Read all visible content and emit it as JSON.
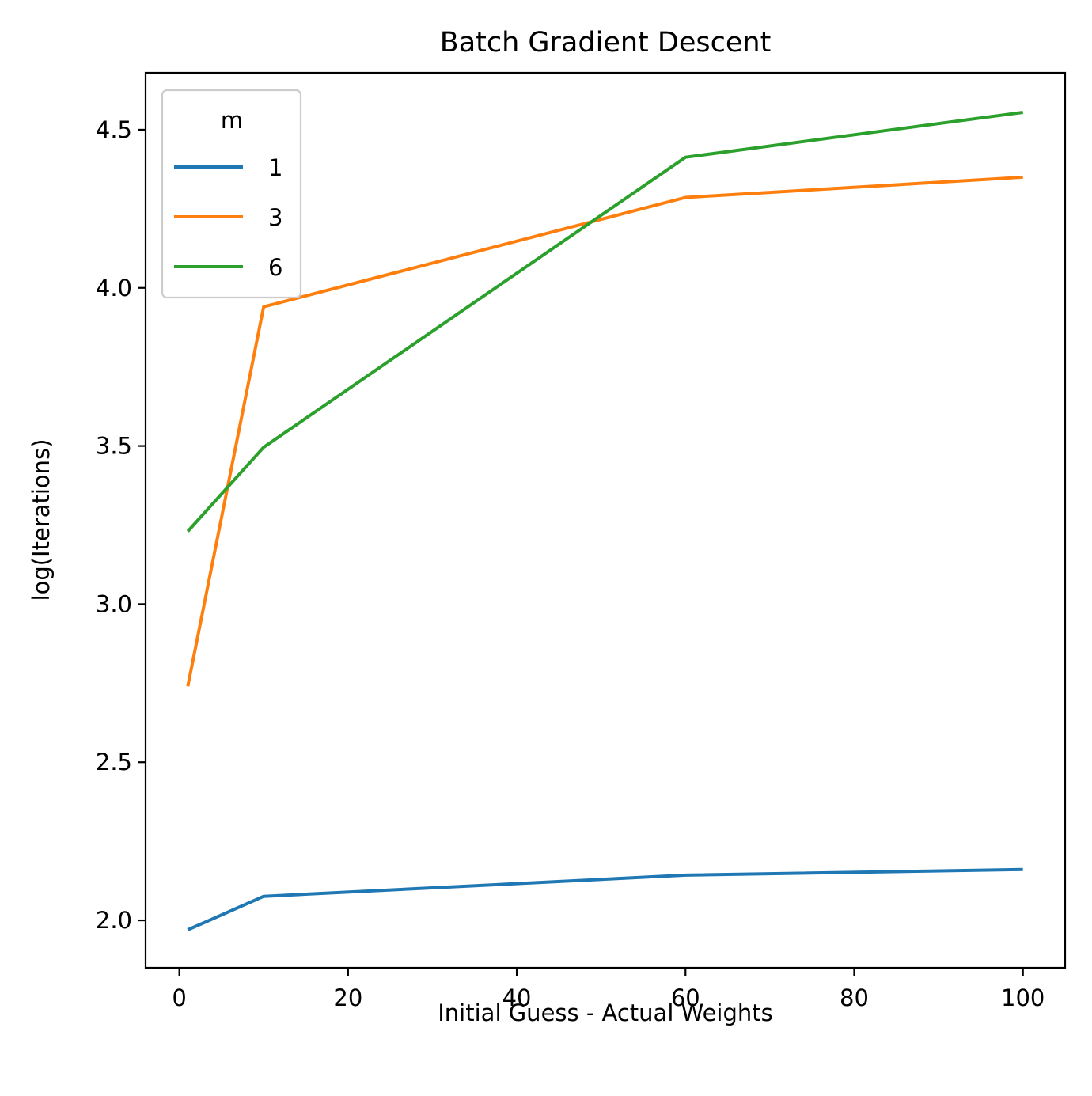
{
  "chart_data": {
    "type": "line",
    "title": "Batch Gradient Descent",
    "xlabel": "Initial Guess - Actual Weights",
    "ylabel": "log(Iterations)",
    "xlim": [
      -4,
      105
    ],
    "ylim": [
      1.85,
      4.68
    ],
    "xticks": [
      0,
      20,
      40,
      60,
      80,
      100
    ],
    "xtick_labels": [
      "0",
      "20",
      "40",
      "60",
      "80",
      "100"
    ],
    "yticks": [
      2.0,
      2.5,
      3.0,
      3.5,
      4.0,
      4.5
    ],
    "ytick_labels": [
      "2.0",
      "2.5",
      "3.0",
      "3.5",
      "4.0",
      "4.5"
    ],
    "grid": false,
    "legend": {
      "title": "m",
      "placement": "top-left"
    },
    "x": [
      1,
      10,
      60,
      100
    ],
    "series": [
      {
        "name": "1",
        "color": "#1f77b4",
        "values": [
          1.97,
          2.076,
          2.143,
          2.161
        ]
      },
      {
        "name": "3",
        "color": "#ff7f0e",
        "values": [
          2.74,
          3.94,
          4.286,
          4.35
        ]
      },
      {
        "name": "6",
        "color": "#2ca02c",
        "values": [
          3.23,
          3.496,
          4.413,
          4.555
        ]
      }
    ]
  }
}
